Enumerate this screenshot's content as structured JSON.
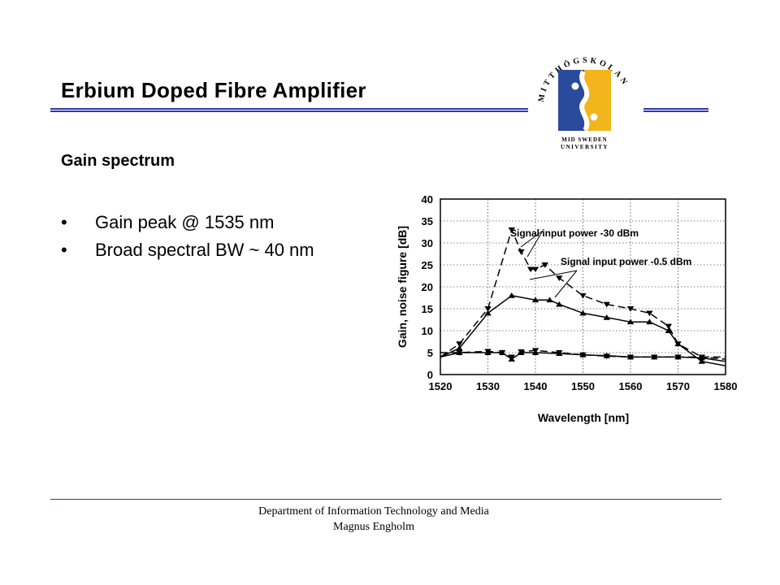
{
  "slide": {
    "title": "Erbium Doped Fibre Amplifier",
    "subtitle": "Gain spectrum",
    "bullets": [
      "Gain peak @ 1535 nm",
      "Broad spectral BW ~ 40 nm"
    ],
    "bullet_glyph": "•"
  },
  "logo": {
    "arc_text": "MITTHÖGSKOLAN",
    "line1": "MID SWEDEN",
    "line2": "UNIVERSITY",
    "blue": "#2a4b9b",
    "yellow": "#f2b51b"
  },
  "footer": {
    "line1": "Department of Information Technology and Media",
    "line2": "Magnus Engholm"
  },
  "colors": {
    "rule": "#2c3aa8"
  },
  "chart_data": {
    "type": "line",
    "xlabel": "Wavelength  [nm]",
    "ylabel": "Gain, noise figure  [dB]",
    "xlim": [
      1520,
      1580
    ],
    "ylim": [
      0,
      40
    ],
    "xticks": [
      1520,
      1530,
      1540,
      1550,
      1560,
      1570,
      1580
    ],
    "yticks": [
      0,
      5,
      10,
      15,
      20,
      25,
      30,
      35,
      40
    ],
    "grid": true,
    "annotations": [
      "Signal input power -30 dBm",
      "Signal input power -0.5 dBm"
    ],
    "series": [
      {
        "style": "dashed",
        "marker": "tri-down",
        "x": [
          1520,
          1524,
          1530,
          1535,
          1537,
          1539,
          1540,
          1542,
          1545,
          1550,
          1555,
          1560,
          1564,
          1568,
          1570,
          1575,
          1580
        ],
        "y": [
          4,
          7,
          15,
          33,
          28,
          24,
          24,
          25,
          22,
          18,
          16,
          15,
          14,
          11,
          7,
          4,
          4
        ]
      },
      {
        "style": "solid",
        "marker": "tri-up",
        "x": [
          1520,
          1524,
          1530,
          1535,
          1540,
          1543,
          1545,
          1550,
          1555,
          1560,
          1564,
          1568,
          1570,
          1575,
          1580
        ],
        "y": [
          4,
          6,
          14,
          18,
          17,
          17,
          16,
          14,
          13,
          12,
          12,
          10,
          7,
          3,
          2
        ]
      },
      {
        "style": "dashed",
        "marker": "tri-down",
        "x": [
          1520,
          1524,
          1530,
          1533,
          1535,
          1537,
          1540,
          1545,
          1550,
          1555,
          1560,
          1565,
          1570,
          1575,
          1580
        ],
        "y": [
          5,
          5,
          5.3,
          5,
          4,
          5.2,
          5.5,
          5,
          4.5,
          4.2,
          4,
          4,
          4,
          4,
          3.5
        ]
      },
      {
        "style": "solid",
        "marker": "tri-up",
        "x": [
          1520,
          1524,
          1530,
          1533,
          1535,
          1537,
          1540,
          1545,
          1550,
          1555,
          1560,
          1565,
          1570,
          1575,
          1580
        ],
        "y": [
          4,
          5,
          5,
          5,
          3.5,
          5,
          5,
          4.8,
          4.5,
          4.3,
          4,
          4,
          4,
          3.8,
          3
        ]
      }
    ]
  }
}
